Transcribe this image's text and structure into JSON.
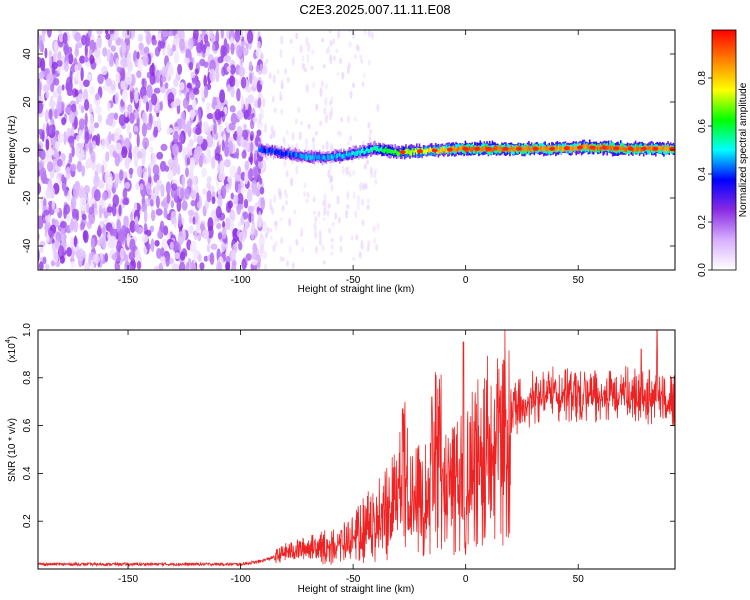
{
  "page": {
    "title": "C2E3.2025.007.11.11.E08"
  },
  "chart_data": [
    {
      "type": "heatmap",
      "title": "C2E3.2025.007.11.11.E08",
      "xlabel": "Height of straight line (km)",
      "ylabel": "Frequency (Hz)",
      "xlim": [
        -190,
        93
      ],
      "ylim": [
        -50,
        50
      ],
      "x_ticks": [
        -150,
        -100,
        -50,
        0,
        50
      ],
      "y_ticks": [
        -40,
        -20,
        0,
        20,
        40
      ],
      "grid": false,
      "colorbar": {
        "label": "Normalized spectral amplitude",
        "range": [
          0,
          1
        ],
        "ticks": [
          0.0,
          0.2,
          0.4,
          0.6,
          0.8
        ],
        "colors": [
          "#ffffff",
          "#d8b0ff",
          "#8a2be2",
          "#0000ff",
          "#00ffff",
          "#00ff00",
          "#ffff00",
          "#ff8000",
          "#ff0000"
        ]
      },
      "noise_region": {
        "x": [
          -190,
          -92
        ],
        "amplitude": 0.2
      },
      "ridge": [
        {
          "x": -92,
          "y": 0.5,
          "amplitude": 0.4
        },
        {
          "x": -80,
          "y": -1.5,
          "amplitude": 0.4
        },
        {
          "x": -70,
          "y": -3,
          "amplitude": 0.45
        },
        {
          "x": -60,
          "y": -3,
          "amplitude": 0.45
        },
        {
          "x": -50,
          "y": -1.5,
          "amplitude": 0.5
        },
        {
          "x": -40,
          "y": 0.5,
          "amplitude": 0.55
        },
        {
          "x": -30,
          "y": -1,
          "amplitude": 0.65
        },
        {
          "x": -20,
          "y": -0.5,
          "amplitude": 0.75
        },
        {
          "x": -10,
          "y": 0,
          "amplitude": 0.8
        },
        {
          "x": 0,
          "y": 0.5,
          "amplitude": 0.9
        },
        {
          "x": 20,
          "y": 0.5,
          "amplitude": 0.9
        },
        {
          "x": 40,
          "y": 0.5,
          "amplitude": 0.85
        },
        {
          "x": 50,
          "y": 1,
          "amplitude": 0.85
        },
        {
          "x": 60,
          "y": 1,
          "amplitude": 0.9
        },
        {
          "x": 70,
          "y": 0.5,
          "amplitude": 0.9
        },
        {
          "x": 93,
          "y": 0.5,
          "amplitude": 0.85
        }
      ]
    },
    {
      "type": "line",
      "xlabel": "Height of straight line (km)",
      "ylabel": "SNR (10 * v/v)",
      "y_multiplier": "(x10",
      "y_multiplier_exp": "4",
      "y_multiplier_close": ")",
      "xlim": [
        -190,
        93
      ],
      "ylim": [
        0,
        1.0
      ],
      "x_ticks": [
        -150,
        -100,
        -50,
        0,
        50
      ],
      "y_ticks": [
        0.2,
        0.4,
        0.6,
        0.8,
        1.0
      ],
      "grid": false,
      "color": "#ee2222",
      "series": [
        {
          "x": [
            -190,
            -170,
            -150,
            -130,
            -110,
            -100,
            -92,
            -85,
            -80,
            -75,
            -70,
            -65,
            -60,
            -55,
            -50,
            -45,
            -40,
            -35,
            -30,
            -27,
            -25,
            -20,
            -15,
            -12,
            -10,
            -5,
            -2,
            0,
            1,
            5,
            10,
            15,
            20,
            25,
            30,
            35,
            40,
            45,
            50,
            55,
            60,
            65,
            70,
            75,
            80,
            85,
            90,
            93
          ],
          "values": [
            0.02,
            0.02,
            0.02,
            0.02,
            0.02,
            0.02,
            0.03,
            0.05,
            0.07,
            0.08,
            0.09,
            0.1,
            0.11,
            0.12,
            0.15,
            0.2,
            0.25,
            0.3,
            0.33,
            0.5,
            0.3,
            0.35,
            0.4,
            0.7,
            0.42,
            0.45,
            0.5,
            0.05,
            0.48,
            0.52,
            0.58,
            0.63,
            0.67,
            0.72,
            0.74,
            0.75,
            0.76,
            0.75,
            0.74,
            0.76,
            0.75,
            0.74,
            0.77,
            0.75,
            0.74,
            0.76,
            0.73,
            0.72
          ],
          "peaks": [
            {
              "x": -28,
              "y": 0.67
            },
            {
              "x": -15,
              "y": 0.72
            },
            {
              "x": -12,
              "y": 0.68
            },
            {
              "x": -1,
              "y": 0.95
            },
            {
              "x": 78,
              "y": 0.92
            },
            {
              "x": 85,
              "y": 1.0
            }
          ]
        }
      ]
    }
  ]
}
